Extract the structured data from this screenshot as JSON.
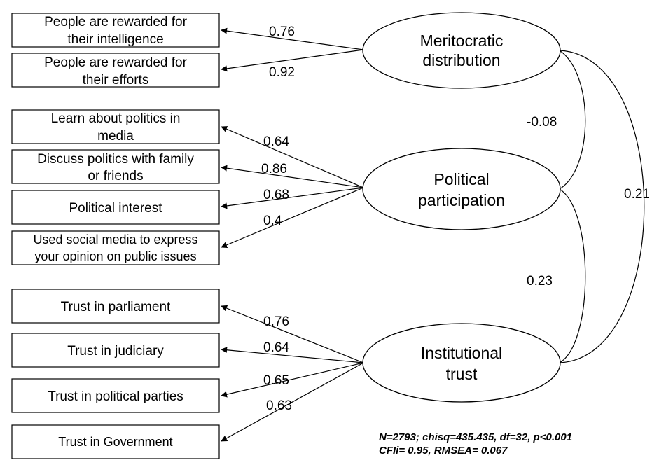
{
  "latents": {
    "meritocratic": [
      "Meritocratic",
      "distribution"
    ],
    "participation": [
      "Political",
      "participation"
    ],
    "trust": [
      "Institutional",
      "trust"
    ]
  },
  "indicators": {
    "intelligence": [
      "People are rewarded for",
      "their intelligence"
    ],
    "efforts": [
      "People are rewarded for",
      "their efforts"
    ],
    "media": [
      "Learn about politics in",
      "media"
    ],
    "discuss": [
      "Discuss politics with family",
      "or friends"
    ],
    "interest": [
      "Political interest"
    ],
    "social": [
      "Used social media to express",
      "your opinion on public issues"
    ],
    "parliament": [
      "Trust in parliament"
    ],
    "judiciary": [
      "Trust in judiciary"
    ],
    "parties": [
      "Trust in political parties"
    ],
    "government": [
      "Trust in Government"
    ]
  },
  "loadings": {
    "intelligence": "0.76",
    "efforts": "0.92",
    "media": "0.64",
    "discuss": "0.86",
    "interest": "0.68",
    "social": "0.4",
    "parliament": "0.76",
    "judiciary": "0.64",
    "parties": "0.65",
    "government": "0.63"
  },
  "correlations": {
    "meritocratic_participation": "-0.08",
    "participation_trust": "0.23",
    "meritocratic_trust": "0.21"
  },
  "fit": {
    "line1": "N=2793; chisq=435.435, df=32, p<0.001",
    "line2": "CFIi= 0.95, RMSEA= 0.067"
  }
}
